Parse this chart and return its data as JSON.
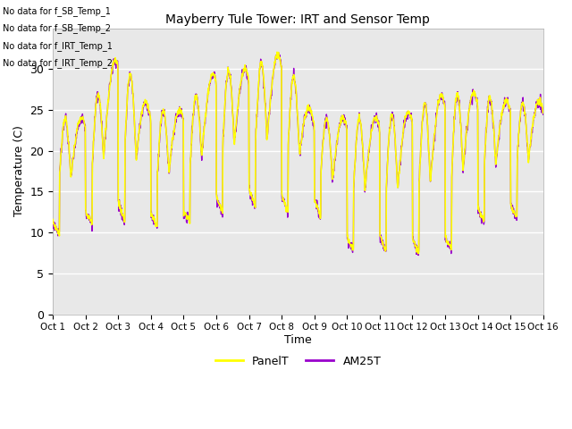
{
  "title": "Mayberry Tule Tower: IRT and Sensor Temp",
  "xlabel": "Time",
  "ylabel": "Temperature (C)",
  "ylim": [
    0,
    35
  ],
  "yticks": [
    0,
    5,
    10,
    15,
    20,
    25,
    30
  ],
  "background_color": "#e8e8e8",
  "panel_color": "yellow",
  "am25_color": "#9900cc",
  "legend_labels": [
    "PanelT",
    "AM25T"
  ],
  "no_data_texts": [
    "No data for f_SB_Temp_1",
    "No data for f_SB_Temp_2",
    "No data for f_IRT_Temp_1",
    "No data for f_IRT_Temp_2"
  ],
  "x_tick_labels": [
    "Oct 1",
    "Oct 2",
    "Oct 3",
    "Oct 4",
    "Oct 5",
    "Oct 6",
    "Oct 7",
    "Oct 8",
    "Oct 9",
    "Oct 10",
    "Oct 11",
    "Oct 12",
    "Oct 13",
    "Oct 14",
    "Oct 15",
    "Oct 16"
  ],
  "num_days": 15,
  "samples_per_day": 96,
  "day_peak_temps": [
    24,
    24,
    32,
    25,
    25,
    30,
    30,
    32,
    24,
    24,
    24,
    25,
    27,
    27,
    26,
    26
  ],
  "day_min_temps": [
    8.5,
    10,
    10,
    9.5,
    10,
    11,
    12,
    11,
    12,
    6.5,
    6.5,
    6,
    5.8,
    10,
    10.5,
    12.5
  ],
  "figsize": [
    6.4,
    4.8
  ],
  "dpi": 100
}
